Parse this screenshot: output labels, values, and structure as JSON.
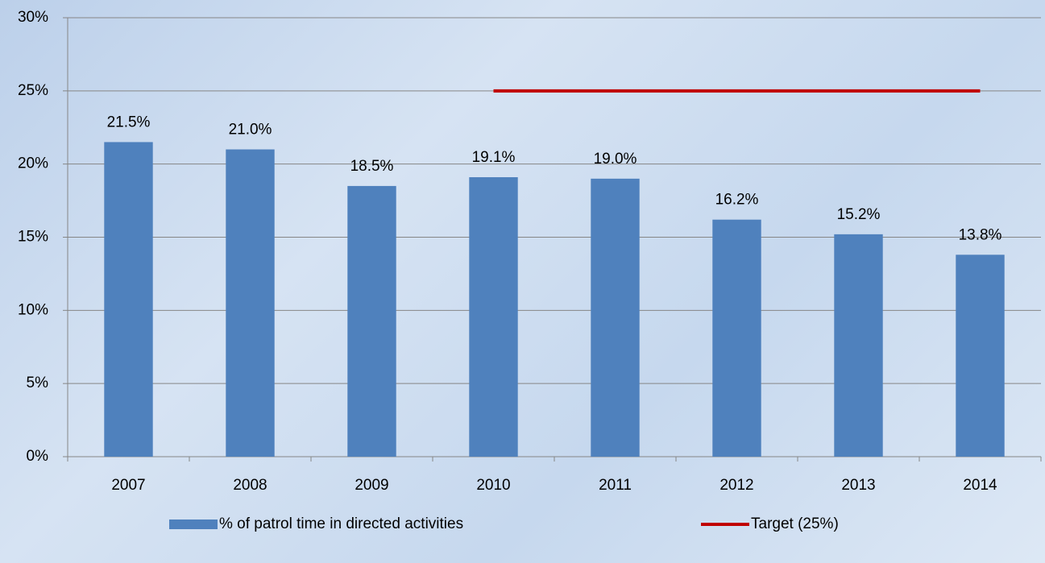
{
  "chart_data": {
    "type": "bar",
    "categories": [
      "2007",
      "2008",
      "2009",
      "2010",
      "2011",
      "2012",
      "2013",
      "2014"
    ],
    "series": [
      {
        "name": "% of patrol time in directed activities",
        "type": "bar",
        "color": "#4f81bd",
        "values": [
          21.5,
          21.0,
          18.5,
          19.1,
          19.0,
          16.2,
          15.2,
          13.8
        ],
        "value_labels": [
          "21.5%",
          "21.0%",
          "18.5%",
          "19.1%",
          "19.0%",
          "16.2%",
          "15.2%",
          "13.8%"
        ]
      },
      {
        "name": "Target (25%)",
        "type": "line",
        "color": "#c00000",
        "values": [
          null,
          null,
          null,
          25,
          25,
          25,
          25,
          25
        ]
      }
    ],
    "ylim": [
      0,
      30
    ],
    "yticks": [
      {
        "value": 0,
        "label": "0%"
      },
      {
        "value": 5,
        "label": "5%"
      },
      {
        "value": 10,
        "label": "10%"
      },
      {
        "value": 15,
        "label": "15%"
      },
      {
        "value": 20,
        "label": "20%"
      },
      {
        "value": 25,
        "label": "25%"
      },
      {
        "value": 30,
        "label": "30%"
      }
    ],
    "grid": true,
    "legend": "bottom"
  }
}
